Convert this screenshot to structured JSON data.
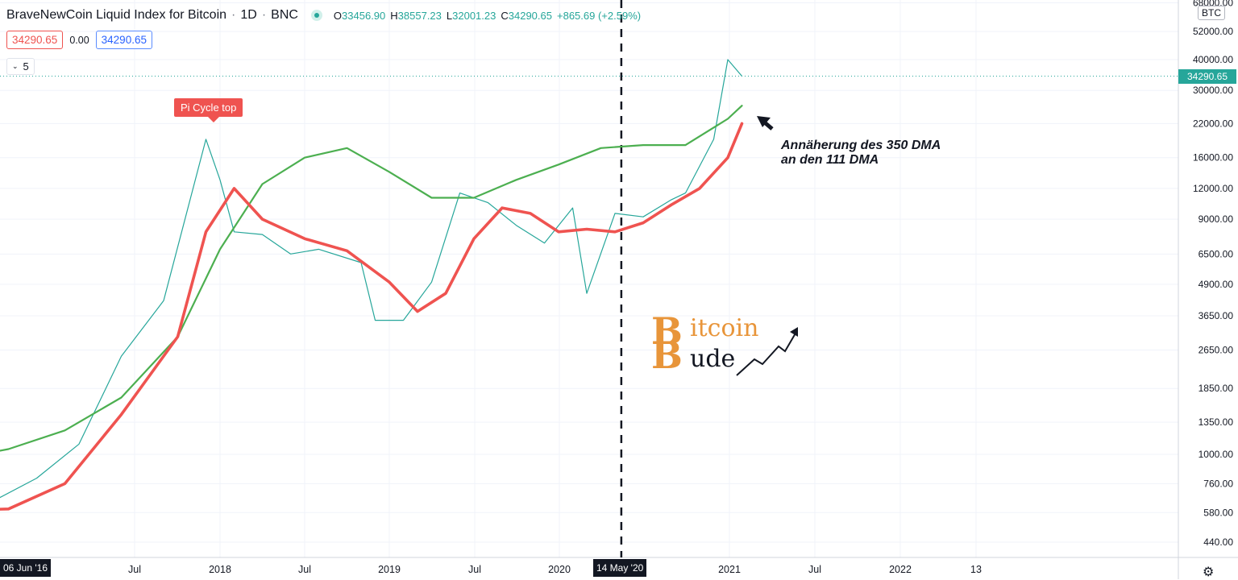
{
  "header": {
    "title": "BraveNewCoin Liquid Index for Bitcoin",
    "interval": "1D",
    "exchange": "BNC",
    "separator": "·",
    "o_label": "O",
    "o_value": "33456.90",
    "h_label": "H",
    "h_value": "38557.23",
    "l_label": "L",
    "l_value": "32001.23",
    "c_label": "C",
    "c_value": "34290.65",
    "change": "+865.69 (+2.59%)"
  },
  "sub": {
    "sell": "34290.65",
    "spread": "0.00",
    "buy": "34290.65"
  },
  "indicator": {
    "chevron": "⌄",
    "value": "5"
  },
  "currency_tag": "BTC",
  "last_price_tag": "34290.65",
  "callout": "Pi Cycle top",
  "note_lines": [
    "Annäherung des 350 DMA",
    "an den 111 DMA"
  ],
  "logo": {
    "line1_big": "B",
    "line1_rest": "itcoin",
    "line2_big": "B",
    "line2_rest": "ude"
  },
  "date_tags": {
    "left": "06 Jun '16",
    "cursor": "14 May '20"
  },
  "settings_icon": "gear-icon",
  "colors": {
    "green_ma": "#4caf50",
    "red_ma": "#ef5350",
    "up": "#26a69a",
    "down": "#ef5350"
  },
  "chart_data": {
    "type": "line",
    "scale": "log",
    "y_ticks": [
      "68000.00",
      "52000.00",
      "40000.00",
      "30000.00",
      "22000.00",
      "16000.00",
      "12000.00",
      "9000.00",
      "6500.00",
      "4900.00",
      "3650.00",
      "2650.00",
      "1850.00",
      "1350.00",
      "1000.00",
      "760.00",
      "580.00",
      "440.00"
    ],
    "x_ticks": [
      "Jul",
      "2018",
      "Jul",
      "2019",
      "Jul",
      "2020",
      "2021",
      "Jul",
      "2022",
      "13"
    ],
    "ylim": [
      400,
      70000
    ],
    "series": [
      {
        "color": "#26a69a",
        "x": [
          "2016-06",
          "2016-09",
          "2016-12",
          "2017-03",
          "2017-06",
          "2017-09",
          "2017-12",
          "2018-01",
          "2018-02",
          "2018-04",
          "2018-06",
          "2018-08",
          "2018-11",
          "2018-12",
          "2019-02",
          "2019-04",
          "2019-06",
          "2019-08",
          "2019-10",
          "2019-12",
          "2020-02",
          "2020-03",
          "2020-05",
          "2020-07",
          "2020-09",
          "2020-10",
          "2020-12",
          "2021-01",
          "2021-02"
        ],
        "values": [
          600,
          650,
          800,
          1100,
          2500,
          4200,
          19000,
          13000,
          8000,
          7800,
          6500,
          6800,
          6000,
          3500,
          3500,
          5000,
          11500,
          10500,
          8500,
          7200,
          10000,
          4500,
          9500,
          9200,
          10800,
          11500,
          19000,
          40000,
          34290
        ]
      },
      {
        "name": "350 DMA",
        "color": "#4caf50",
        "x": [
          "2016-06",
          "2016-10",
          "2017-02",
          "2017-06",
          "2017-10",
          "2018-01",
          "2018-04",
          "2018-07",
          "2018-10",
          "2019-01",
          "2019-04",
          "2019-07",
          "2019-10",
          "2020-01",
          "2020-04",
          "2020-07",
          "2020-10",
          "2021-01",
          "2021-02"
        ],
        "values": [
          950,
          1050,
          1250,
          1700,
          3000,
          6800,
          12500,
          16000,
          17500,
          14000,
          11000,
          11000,
          13000,
          15000,
          17500,
          18000,
          18000,
          23000,
          26000
        ]
      },
      {
        "name": "111 DMA",
        "color": "#ef5350",
        "x": [
          "2016-06",
          "2016-10",
          "2017-02",
          "2017-06",
          "2017-10",
          "2017-12",
          "2018-02",
          "2018-04",
          "2018-07",
          "2018-10",
          "2019-01",
          "2019-03",
          "2019-05",
          "2019-07",
          "2019-09",
          "2019-11",
          "2020-01",
          "2020-03",
          "2020-05",
          "2020-07",
          "2020-09",
          "2020-11",
          "2021-01",
          "2021-02"
        ],
        "values": [
          590,
          600,
          760,
          1450,
          3000,
          8000,
          12000,
          9000,
          7500,
          6700,
          5000,
          3800,
          4500,
          7500,
          10000,
          9500,
          8000,
          8200,
          8000,
          8700,
          10300,
          12000,
          16000,
          22000
        ]
      }
    ],
    "annotations": [
      "Pi Cycle top",
      "Annäherung des 350 DMA an den 111 DMA"
    ],
    "grid": true,
    "vertical_marker": "14 May '20"
  }
}
